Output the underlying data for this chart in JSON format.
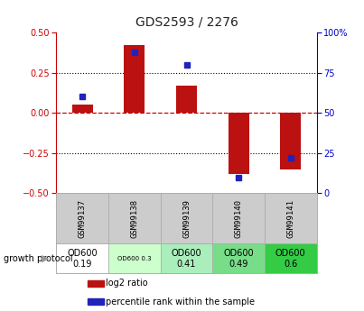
{
  "title": "GDS2593 / 2276",
  "samples": [
    "GSM99137",
    "GSM99138",
    "GSM99139",
    "GSM99140",
    "GSM99141"
  ],
  "log2_ratio": [
    0.05,
    0.42,
    0.17,
    -0.38,
    -0.35
  ],
  "percentile_rank": [
    60,
    88,
    80,
    10,
    22
  ],
  "ylim_left": [
    -0.5,
    0.5
  ],
  "ylim_right": [
    0,
    100
  ],
  "yticks_left": [
    -0.5,
    -0.25,
    0,
    0.25,
    0.5
  ],
  "yticks_right": [
    0,
    25,
    50,
    75,
    100
  ],
  "bar_color": "#bb1111",
  "dot_color": "#2222bb",
  "hline_color": "#cc0000",
  "protocol_labels": [
    "OD600\n0.19",
    "OD600 0.3",
    "OD600\n0.41",
    "OD600\n0.49",
    "OD600\n0.6"
  ],
  "protocol_colors": [
    "#ffffff",
    "#ccffcc",
    "#aaeebb",
    "#77dd88",
    "#33cc44"
  ],
  "protocol_small": [
    false,
    true,
    false,
    false,
    false
  ],
  "growth_protocol_text": "growth protocol",
  "legend_red": "log2 ratio",
  "legend_blue": "percentile rank within the sample",
  "title_color": "#222222",
  "left_axis_color": "#cc0000",
  "right_axis_color": "#0000cc",
  "label_bg_color": "#cccccc",
  "label_border_color": "#aaaaaa"
}
